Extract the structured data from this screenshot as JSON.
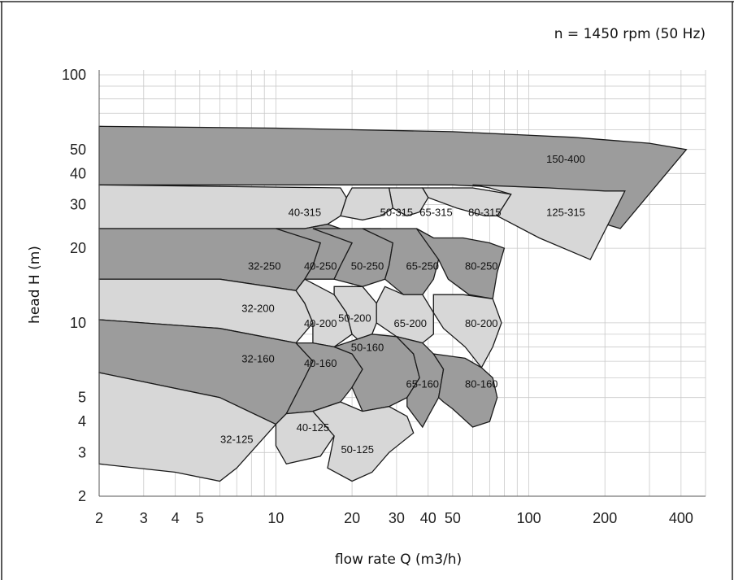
{
  "chart_data": {
    "type": "area",
    "annotation": "n = 1450 rpm (50 Hz)",
    "xlabel": "flow rate Q (m3/h)",
    "ylabel": "head H (m)",
    "xscale": "log",
    "yscale": "log",
    "xlim": [
      2,
      500
    ],
    "ylim": [
      2,
      100
    ],
    "grid": true,
    "xticks": [
      {
        "value": 2,
        "label": "2"
      },
      {
        "value": 3,
        "label": "3"
      },
      {
        "value": 4,
        "label": "4"
      },
      {
        "value": 5,
        "label": "5"
      },
      {
        "value": 10,
        "label": "10"
      },
      {
        "value": 20,
        "label": "20"
      },
      {
        "value": 30,
        "label": "30"
      },
      {
        "value": 40,
        "label": "40"
      },
      {
        "value": 50,
        "label": "50"
      },
      {
        "value": 100,
        "label": "100"
      },
      {
        "value": 200,
        "label": "200"
      },
      {
        "value": 400,
        "label": "400"
      }
    ],
    "yticks": [
      {
        "value": 2,
        "label": "2"
      },
      {
        "value": 3,
        "label": "3"
      },
      {
        "value": 4,
        "label": "4"
      },
      {
        "value": 5,
        "label": "5"
      },
      {
        "value": 10,
        "label": "10"
      },
      {
        "value": 20,
        "label": "20"
      },
      {
        "value": 30,
        "label": "30"
      },
      {
        "value": 40,
        "label": "40"
      },
      {
        "value": 50,
        "label": "50"
      },
      {
        "value": 100,
        "label": "100"
      }
    ],
    "series": [
      {
        "name": "150-400",
        "shade": "dark",
        "label_at": [
          140,
          46
        ],
        "points": [
          [
            2,
            62
          ],
          [
            10,
            61
          ],
          [
            50,
            59
          ],
          [
            150,
            56
          ],
          [
            300,
            53
          ],
          [
            420,
            50
          ],
          [
            230,
            24
          ],
          [
            110,
            30
          ],
          [
            130,
            33
          ],
          [
            160,
            34
          ],
          [
            50,
            36
          ],
          [
            2,
            36
          ]
        ]
      },
      {
        "name": "125-315",
        "shade": "light",
        "label_at": [
          140,
          28
        ],
        "points": [
          [
            60,
            36
          ],
          [
            120,
            35
          ],
          [
            200,
            34
          ],
          [
            240,
            34
          ],
          [
            175,
            18
          ],
          [
            110,
            22
          ],
          [
            75,
            27
          ],
          [
            85,
            33
          ],
          [
            70,
            35
          ]
        ]
      },
      {
        "name": "80-315",
        "shade": "light",
        "label_at": [
          67,
          28
        ],
        "points": [
          [
            38,
            35
          ],
          [
            60,
            35
          ],
          [
            85,
            33
          ],
          [
            75,
            27
          ],
          [
            67,
            27
          ],
          [
            52,
            29
          ],
          [
            40,
            32
          ]
        ]
      },
      {
        "name": "65-315",
        "shade": "light",
        "label_at": [
          43,
          28
        ],
        "points": [
          [
            28,
            35
          ],
          [
            38,
            35
          ],
          [
            40,
            32
          ],
          [
            37,
            28
          ],
          [
            33,
            27
          ],
          [
            29,
            29
          ]
        ]
      },
      {
        "name": "50-315",
        "shade": "light",
        "label_at": [
          30,
          28
        ],
        "points": [
          [
            20,
            35
          ],
          [
            28,
            35
          ],
          [
            29,
            29
          ],
          [
            26,
            27
          ],
          [
            22,
            26
          ],
          [
            18,
            27
          ],
          [
            19,
            32
          ]
        ]
      },
      {
        "name": "40-315",
        "shade": "light",
        "label_at": [
          13,
          28
        ],
        "points": [
          [
            2,
            36
          ],
          [
            18,
            35
          ],
          [
            19,
            32
          ],
          [
            18,
            27
          ],
          [
            16,
            25
          ],
          [
            13,
            24
          ],
          [
            2,
            24
          ]
        ]
      },
      {
        "name": "32-250",
        "shade": "dark",
        "label_at": [
          9,
          17
        ],
        "points": [
          [
            2,
            24
          ],
          [
            6.3,
            24
          ],
          [
            13,
            24
          ],
          [
            15,
            21
          ],
          [
            14,
            17
          ],
          [
            13,
            15
          ],
          [
            12,
            13.5
          ],
          [
            6,
            15
          ],
          [
            2,
            15
          ]
        ]
      },
      {
        "name": "40-250",
        "shade": "dark",
        "label_at": [
          15,
          17
        ],
        "points": [
          [
            10,
            24
          ],
          [
            13,
            24
          ],
          [
            16,
            25
          ],
          [
            18,
            24
          ],
          [
            20,
            21
          ],
          [
            18,
            17
          ],
          [
            17,
            15
          ],
          [
            13,
            15
          ],
          [
            14,
            17
          ],
          [
            15,
            21
          ]
        ]
      },
      {
        "name": "50-250",
        "shade": "dark",
        "label_at": [
          23,
          17
        ],
        "points": [
          [
            14,
            24
          ],
          [
            18,
            24
          ],
          [
            22,
            24
          ],
          [
            26,
            24
          ],
          [
            29,
            21
          ],
          [
            28,
            17
          ],
          [
            27,
            15
          ],
          [
            22,
            14
          ],
          [
            17,
            15
          ],
          [
            18,
            17
          ],
          [
            20,
            21
          ]
        ]
      },
      {
        "name": "65-250",
        "shade": "dark",
        "label_at": [
          38,
          17
        ],
        "points": [
          [
            22,
            24
          ],
          [
            26,
            24
          ],
          [
            36,
            24
          ],
          [
            42,
            22
          ],
          [
            44,
            18
          ],
          [
            42,
            15
          ],
          [
            38,
            13
          ],
          [
            32,
            13
          ],
          [
            27,
            15
          ],
          [
            28,
            17
          ],
          [
            29,
            21
          ]
        ]
      },
      {
        "name": "80-250",
        "shade": "dark",
        "label_at": [
          65,
          17
        ],
        "points": [
          [
            36,
            24
          ],
          [
            42,
            22
          ],
          [
            55,
            22
          ],
          [
            70,
            21
          ],
          [
            80,
            20
          ],
          [
            75,
            16
          ],
          [
            72,
            12.5
          ],
          [
            58,
            13
          ],
          [
            48,
            15
          ],
          [
            44,
            18
          ]
        ]
      },
      {
        "name": "32-200",
        "shade": "light",
        "label_at": [
          8.5,
          11.5
        ],
        "points": [
          [
            2,
            15
          ],
          [
            6,
            15
          ],
          [
            12,
            13.5
          ],
          [
            13,
            12
          ],
          [
            14,
            10
          ],
          [
            12,
            8.3
          ],
          [
            6,
            9.5
          ],
          [
            2,
            10.3
          ]
        ]
      },
      {
        "name": "40-200",
        "shade": "light",
        "label_at": [
          15,
          10
        ],
        "points": [
          [
            12,
            13.5
          ],
          [
            13,
            15
          ],
          [
            17,
            13
          ],
          [
            19,
            11
          ],
          [
            20,
            9
          ],
          [
            17,
            8
          ],
          [
            14,
            8.3
          ],
          [
            14,
            10
          ],
          [
            13,
            12
          ]
        ]
      },
      {
        "name": "50-200",
        "shade": "light",
        "label_at": [
          20.5,
          10.5
        ],
        "points": [
          [
            17,
            14
          ],
          [
            20,
            14
          ],
          [
            22,
            14
          ],
          [
            25,
            12
          ],
          [
            25,
            10
          ],
          [
            24,
            9
          ],
          [
            21,
            8.6
          ],
          [
            20,
            9
          ],
          [
            19,
            11
          ],
          [
            17,
            13
          ]
        ]
      },
      {
        "name": "65-200",
        "shade": "light",
        "label_at": [
          34,
          10
        ],
        "points": [
          [
            25,
            12
          ],
          [
            27,
            14
          ],
          [
            32,
            13
          ],
          [
            38,
            13
          ],
          [
            42,
            11
          ],
          [
            42,
            9
          ],
          [
            38,
            8.3
          ],
          [
            30,
            8.8
          ],
          [
            25,
            10
          ]
        ]
      },
      {
        "name": "80-200",
        "shade": "light",
        "label_at": [
          65,
          10
        ],
        "points": [
          [
            42,
            13
          ],
          [
            55,
            13
          ],
          [
            72,
            12.5
          ],
          [
            78,
            10
          ],
          [
            72,
            8
          ],
          [
            65,
            6.6
          ],
          [
            56,
            8
          ],
          [
            46,
            9.5
          ],
          [
            42,
            11
          ]
        ]
      },
      {
        "name": "32-160",
        "shade": "dark",
        "label_at": [
          8.5,
          7.2
        ],
        "points": [
          [
            2,
            10.3
          ],
          [
            6,
            9.5
          ],
          [
            12,
            8.3
          ],
          [
            14,
            7
          ],
          [
            13,
            6
          ],
          [
            11,
            4.3
          ],
          [
            10,
            3.9
          ],
          [
            6,
            5
          ],
          [
            2,
            6.3
          ]
        ]
      },
      {
        "name": "40-160",
        "shade": "dark",
        "label_at": [
          15,
          6.9
        ],
        "points": [
          [
            12,
            8.3
          ],
          [
            14,
            8.3
          ],
          [
            17,
            8
          ],
          [
            20,
            7.5
          ],
          [
            22,
            6.5
          ],
          [
            20,
            5.5
          ],
          [
            18,
            4.8
          ],
          [
            14,
            4.4
          ],
          [
            11,
            4.3
          ],
          [
            13,
            6
          ],
          [
            14,
            7
          ]
        ]
      },
      {
        "name": "50-160",
        "shade": "dark",
        "label_at": [
          23,
          8
        ],
        "points": [
          [
            17,
            8
          ],
          [
            21,
            8.6
          ],
          [
            24,
            9
          ],
          [
            30,
            8.8
          ],
          [
            35,
            7.5
          ],
          [
            37,
            6
          ],
          [
            33,
            5
          ],
          [
            28,
            4.6
          ],
          [
            22,
            4.4
          ],
          [
            20,
            5.5
          ],
          [
            22,
            6.5
          ],
          [
            20,
            7.5
          ]
        ]
      },
      {
        "name": "65-160",
        "shade": "dark",
        "label_at": [
          38,
          5.7
        ],
        "points": [
          [
            30,
            8.8
          ],
          [
            38,
            8.3
          ],
          [
            42,
            7.5
          ],
          [
            46,
            6.5
          ],
          [
            44,
            5
          ],
          [
            40,
            4.2
          ],
          [
            38,
            3.8
          ],
          [
            33,
            4.6
          ],
          [
            33,
            5
          ],
          [
            37,
            6
          ],
          [
            35,
            7.5
          ]
        ]
      },
      {
        "name": "80-160",
        "shade": "dark",
        "label_at": [
          65,
          5.7
        ],
        "points": [
          [
            42,
            7.5
          ],
          [
            56,
            7.2
          ],
          [
            65,
            6.6
          ],
          [
            72,
            6
          ],
          [
            75,
            5
          ],
          [
            70,
            4
          ],
          [
            60,
            3.8
          ],
          [
            50,
            4.5
          ],
          [
            46,
            4.8
          ],
          [
            44,
            5
          ],
          [
            46,
            6.5
          ]
        ]
      },
      {
        "name": "32-125",
        "shade": "light",
        "label_at": [
          7,
          3.4
        ],
        "points": [
          [
            2,
            6.3
          ],
          [
            6,
            5
          ],
          [
            10,
            3.9
          ],
          [
            7,
            2.6
          ],
          [
            6,
            2.3
          ],
          [
            4,
            2.5
          ],
          [
            2,
            2.7
          ]
        ]
      },
      {
        "name": "40-125",
        "shade": "light",
        "label_at": [
          14,
          3.8
        ],
        "points": [
          [
            10,
            3.9
          ],
          [
            11,
            4.3
          ],
          [
            14,
            4.4
          ],
          [
            18,
            4.8
          ],
          [
            17,
            3.5
          ],
          [
            15,
            2.9
          ],
          [
            11,
            2.7
          ],
          [
            10,
            3.2
          ]
        ]
      },
      {
        "name": "50-125",
        "shade": "light",
        "label_at": [
          21,
          3.1
        ],
        "points": [
          [
            14,
            4.4
          ],
          [
            18,
            4.8
          ],
          [
            22,
            4.4
          ],
          [
            28,
            4.6
          ],
          [
            33,
            4.2
          ],
          [
            35,
            3.6
          ],
          [
            28,
            3
          ],
          [
            24,
            2.5
          ],
          [
            20,
            2.3
          ],
          [
            16,
            2.6
          ],
          [
            17,
            3.5
          ]
        ]
      }
    ]
  }
}
